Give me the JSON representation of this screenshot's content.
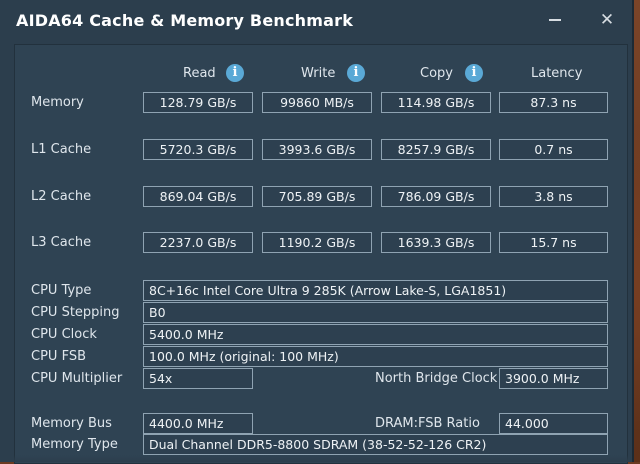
{
  "window": {
    "title": "AIDA64 Cache & Memory Benchmark",
    "close_glyph": "✕"
  },
  "columns": {
    "read": "Read",
    "write": "Write",
    "copy": "Copy",
    "latency": "Latency",
    "info_glyph": "i"
  },
  "bench_rows": [
    {
      "label": "Memory",
      "read": "128.79 GB/s",
      "write": "99860 MB/s",
      "copy": "114.98 GB/s",
      "latency": "87.3 ns"
    },
    {
      "label": "L1 Cache",
      "read": "5720.3 GB/s",
      "write": "3993.6 GB/s",
      "copy": "8257.9 GB/s",
      "latency": "0.7 ns"
    },
    {
      "label": "L2 Cache",
      "read": "869.04 GB/s",
      "write": "705.89 GB/s",
      "copy": "786.09 GB/s",
      "latency": "3.8 ns"
    },
    {
      "label": "L3 Cache",
      "read": "2237.0 GB/s",
      "write": "1190.2 GB/s",
      "copy": "1639.3 GB/s",
      "latency": "15.7 ns"
    }
  ],
  "cpu": {
    "type_label": "CPU Type",
    "type_value": "8C+16c Intel Core Ultra 9 285K  (Arrow Lake-S, LGA1851)",
    "stepping_label": "CPU Stepping",
    "stepping_value": "B0",
    "clock_label": "CPU Clock",
    "clock_value": "5400.0 MHz",
    "fsb_label": "CPU FSB",
    "fsb_value": "100.0 MHz  (original: 100 MHz)",
    "multiplier_label": "CPU Multiplier",
    "multiplier_value": "54x",
    "nb_clock_label": "North Bridge Clock",
    "nb_clock_value": "3900.0 MHz"
  },
  "memory": {
    "bus_label": "Memory Bus",
    "bus_value": "4400.0 MHz",
    "ratio_label": "DRAM:FSB Ratio",
    "ratio_value": "44.000",
    "type_label": "Memory Type",
    "type_value": "Dual Channel DDR5-8800 SDRAM  (38-52-52-126 CR2)"
  },
  "colors": {
    "panel": "#2f4353",
    "cell_border": "#8fa3b2",
    "info": "#5aa9d6",
    "text": "#dfe6ec"
  }
}
